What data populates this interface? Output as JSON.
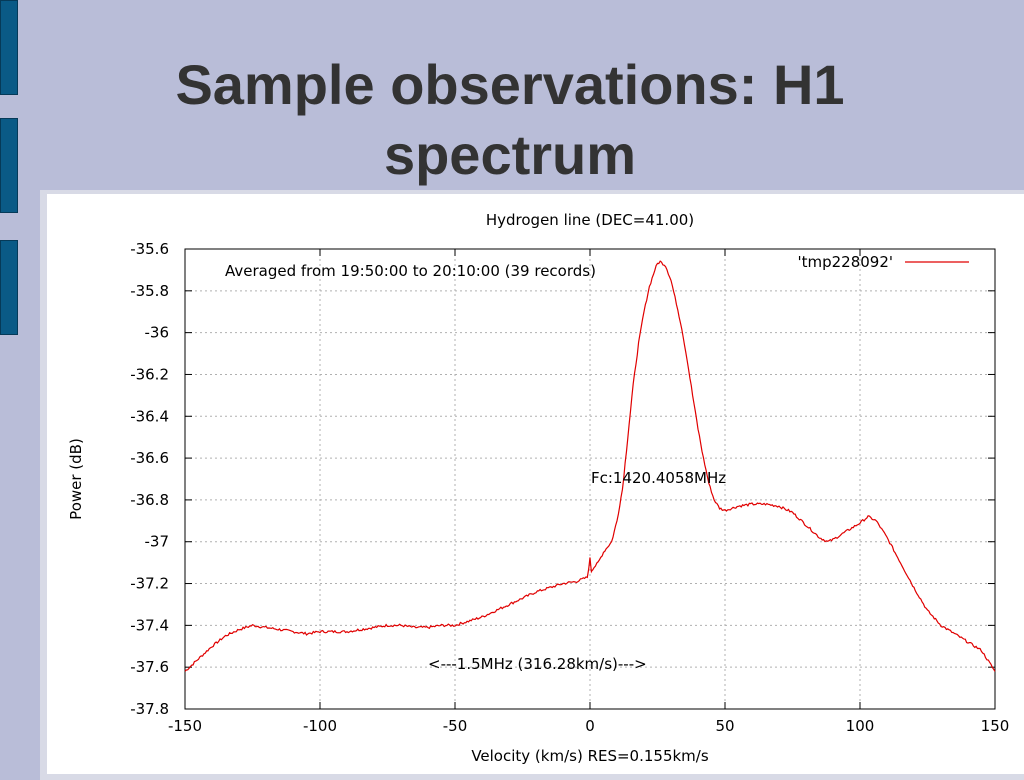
{
  "slide": {
    "title_line1": "Sample observations: H1",
    "title_line2": "spectrum"
  },
  "chart_data": {
    "type": "line",
    "title": "Hydrogen line (DEC=41.00)",
    "xlabel": "Velocity (km/s) RES=0.155km/s",
    "ylabel": "Power (dB)",
    "xlim": [
      -150,
      150
    ],
    "ylim": [
      -37.8,
      -35.6
    ],
    "grid": true,
    "legend_position": "top-right",
    "x_ticks": [
      -150,
      -100,
      -50,
      0,
      50,
      100,
      150
    ],
    "y_ticks": [
      -35.6,
      -35.8,
      -36,
      -36.2,
      -36.4,
      -36.6,
      -36.8,
      -37,
      -37.2,
      -37.4,
      -37.6,
      -37.8
    ],
    "x_tick_labels": [
      "-150",
      "-100",
      "-50",
      "0",
      "50",
      "100",
      "150"
    ],
    "y_tick_labels": [
      "-35.6",
      "-35.8",
      "-36",
      "-36.2",
      "-36.4",
      "-36.6",
      "-36.8",
      "-37",
      "-37.2",
      "-37.4",
      "-37.6",
      "-37.8"
    ],
    "annotations": {
      "averaged": "Averaged from 19:50:00 to 20:10:00 (39 records)",
      "center_freq": "Fc:1420.4058MHz",
      "bandwidth": "<---1.5MHz (316.28km/s)--->"
    },
    "series": [
      {
        "name": "'tmp228092'",
        "color": "#e00000",
        "x": [
          -150,
          -145,
          -140,
          -135,
          -130,
          -125,
          -120,
          -115,
          -110,
          -105,
          -100,
          -95,
          -90,
          -85,
          -80,
          -75,
          -70,
          -65,
          -60,
          -55,
          -50,
          -45,
          -40,
          -35,
          -30,
          -25,
          -20,
          -15,
          -10,
          -5,
          -1,
          0,
          0.5,
          1,
          3,
          5,
          8,
          10,
          12,
          14,
          16,
          18,
          20,
          22,
          24,
          25,
          26,
          27,
          28,
          30,
          32,
          34,
          36,
          38,
          40,
          42,
          44,
          46,
          48,
          50,
          55,
          60,
          65,
          70,
          75,
          80,
          85,
          88,
          90,
          95,
          100,
          103,
          106,
          110,
          115,
          120,
          125,
          130,
          135,
          140,
          145,
          150
        ],
        "y": [
          -37.62,
          -37.56,
          -37.5,
          -37.45,
          -37.42,
          -37.4,
          -37.41,
          -37.42,
          -37.43,
          -37.44,
          -37.43,
          -37.43,
          -37.43,
          -37.42,
          -37.41,
          -37.4,
          -37.4,
          -37.41,
          -37.41,
          -37.4,
          -37.4,
          -37.38,
          -37.36,
          -37.33,
          -37.3,
          -37.27,
          -37.24,
          -37.22,
          -37.2,
          -37.19,
          -37.17,
          -37.08,
          -37.14,
          -37.13,
          -37.1,
          -37.05,
          -37.0,
          -36.9,
          -36.75,
          -36.5,
          -36.25,
          -36.05,
          -35.9,
          -35.78,
          -35.7,
          -35.67,
          -35.66,
          -35.67,
          -35.68,
          -35.75,
          -35.86,
          -35.98,
          -36.13,
          -36.3,
          -36.46,
          -36.6,
          -36.72,
          -36.8,
          -36.84,
          -36.85,
          -36.83,
          -36.82,
          -36.82,
          -36.83,
          -36.86,
          -36.92,
          -36.98,
          -37.0,
          -36.99,
          -36.95,
          -36.91,
          -36.88,
          -36.9,
          -36.98,
          -37.1,
          -37.22,
          -37.33,
          -37.4,
          -37.44,
          -37.48,
          -37.52,
          -37.62
        ]
      }
    ]
  }
}
